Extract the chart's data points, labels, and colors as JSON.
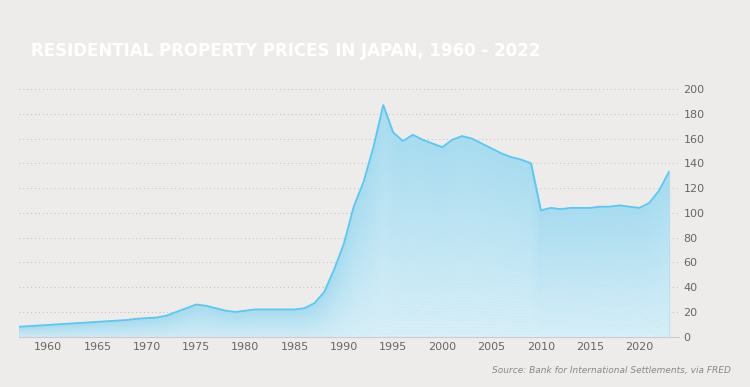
{
  "title": "RESIDENTIAL PROPERTY PRICES IN JAPAN, 1960 - 2022",
  "title_bg_color": "#9B5B3A",
  "title_text_color": "#FFFFFF",
  "source_text": "Source: Bank for International Settlements, via FRED",
  "background_color": "#EDECEA",
  "plot_bg_color": "#EDECEA",
  "line_color": "#5BC8F0",
  "fill_color": "#A8DCF0",
  "ylim": [
    0,
    200
  ],
  "yticks": [
    0,
    20,
    40,
    60,
    80,
    100,
    120,
    140,
    160,
    180,
    200
  ],
  "xticks": [
    1960,
    1965,
    1970,
    1975,
    1980,
    1985,
    1990,
    1995,
    2000,
    2005,
    2010,
    2015,
    2020
  ],
  "xlim": [
    1957,
    2024
  ],
  "years": [
    1957,
    1958,
    1959,
    1960,
    1961,
    1962,
    1963,
    1964,
    1965,
    1966,
    1967,
    1968,
    1969,
    1970,
    1971,
    1972,
    1973,
    1974,
    1975,
    1976,
    1977,
    1978,
    1979,
    1980,
    1981,
    1982,
    1983,
    1984,
    1985,
    1986,
    1987,
    1988,
    1989,
    1990,
    1991,
    1992,
    1993,
    1994,
    1995,
    1996,
    1997,
    1998,
    1999,
    2000,
    2001,
    2002,
    2003,
    2004,
    2005,
    2006,
    2007,
    2008,
    2009,
    2010,
    2011,
    2012,
    2013,
    2014,
    2015,
    2016,
    2017,
    2018,
    2019,
    2020,
    2021,
    2022,
    2023
  ],
  "values": [
    8,
    8.5,
    9,
    9.5,
    10,
    10.5,
    11,
    11.5,
    12,
    12.5,
    13,
    13.5,
    14.5,
    15,
    15.5,
    17,
    20,
    23,
    26,
    25,
    23,
    21,
    20,
    21,
    22,
    22,
    22,
    22,
    22,
    23,
    27,
    36,
    54,
    75,
    105,
    125,
    153,
    187,
    165,
    158,
    163,
    159,
    156,
    153,
    159,
    162,
    160,
    156,
    152,
    148,
    145,
    143,
    140,
    102,
    104,
    103,
    104,
    104,
    104,
    105,
    105,
    106,
    105,
    104,
    108,
    118,
    133
  ]
}
